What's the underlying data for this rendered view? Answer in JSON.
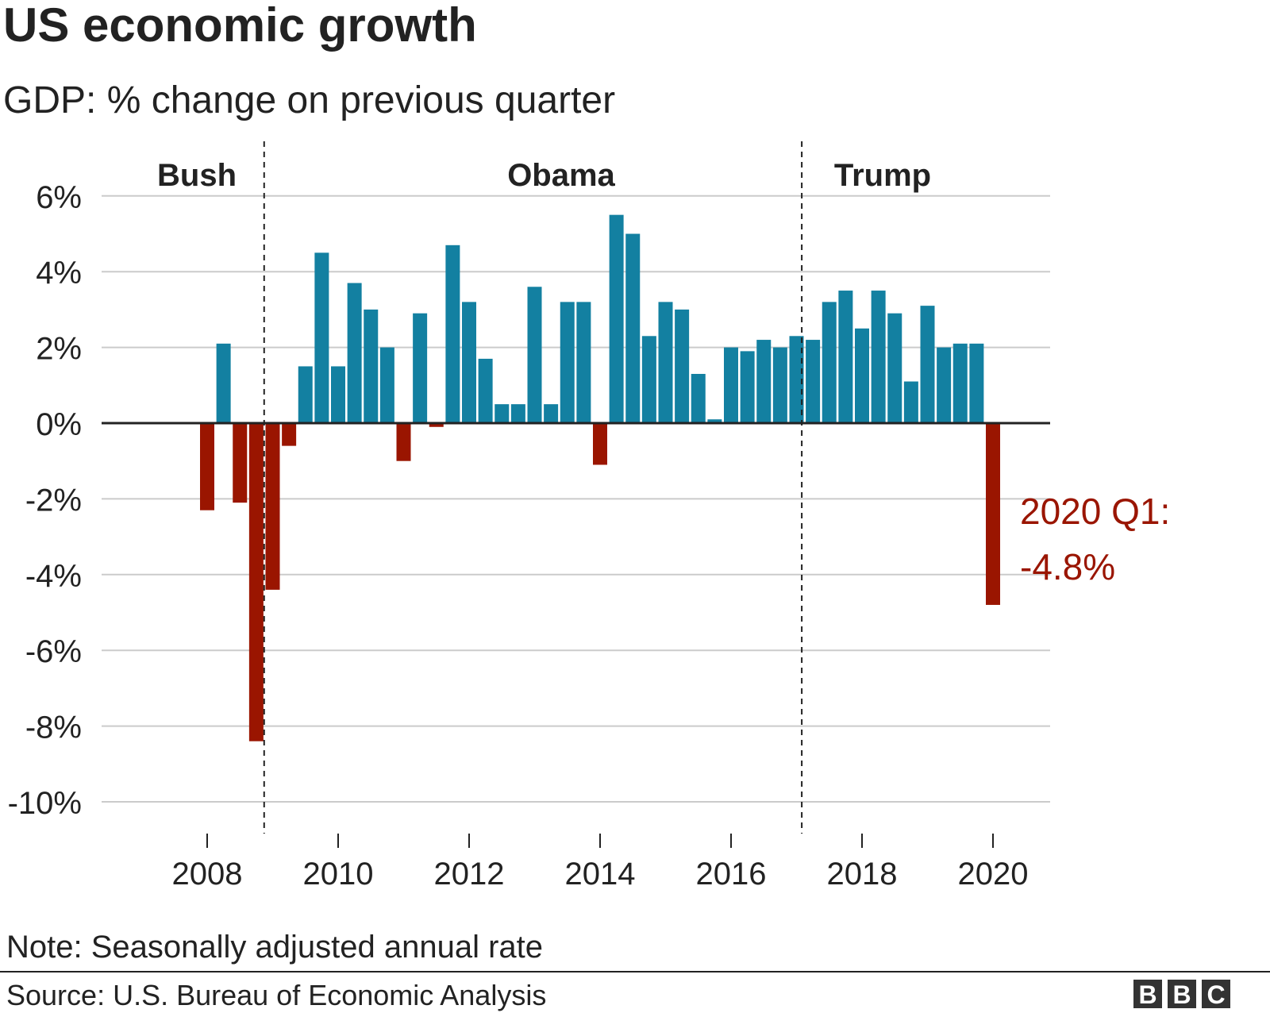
{
  "title": "US economic growth",
  "subtitle": "GDP: % change on previous quarter",
  "note": "Note: Seasonally adjusted annual rate",
  "source": "Source: U.S. Bureau of Economic Analysis",
  "logo": "BBC",
  "colors": {
    "positive": "#1380a1",
    "negative": "#9a1500",
    "annotation": "#9a1500",
    "grid": "#cbcbcb",
    "zero": "#222222"
  },
  "chart_data": {
    "type": "bar",
    "title": "US economic growth",
    "subtitle": "GDP: % change on previous quarter",
    "ylim": [
      -10,
      6
    ],
    "yticks": [
      6,
      4,
      2,
      0,
      -2,
      -4,
      -6,
      -8,
      -10
    ],
    "ytick_labels": [
      "6%",
      "4%",
      "2%",
      "0%",
      "-2%",
      "-4%",
      "-6%",
      "-8%",
      "-10%"
    ],
    "xticks": [
      2008,
      2010,
      2012,
      2014,
      2016,
      2018,
      2020
    ],
    "xtick_labels": [
      "2008",
      "2010",
      "2012",
      "2014",
      "2016",
      "2018",
      "2020"
    ],
    "grid": "horizontal",
    "start_quarter": "2008 Q1",
    "categories": [
      "2008 Q1",
      "2008 Q2",
      "2008 Q3",
      "2008 Q4",
      "2009 Q1",
      "2009 Q2",
      "2009 Q3",
      "2009 Q4",
      "2010 Q1",
      "2010 Q2",
      "2010 Q3",
      "2010 Q4",
      "2011 Q1",
      "2011 Q2",
      "2011 Q3",
      "2011 Q4",
      "2012 Q1",
      "2012 Q2",
      "2012 Q3",
      "2012 Q4",
      "2013 Q1",
      "2013 Q2",
      "2013 Q3",
      "2013 Q4",
      "2014 Q1",
      "2014 Q2",
      "2014 Q3",
      "2014 Q4",
      "2015 Q1",
      "2015 Q2",
      "2015 Q3",
      "2015 Q4",
      "2016 Q1",
      "2016 Q2",
      "2016 Q3",
      "2016 Q4",
      "2017 Q1",
      "2017 Q2",
      "2017 Q3",
      "2017 Q4",
      "2018 Q1",
      "2018 Q2",
      "2018 Q3",
      "2018 Q4",
      "2019 Q1",
      "2019 Q2",
      "2019 Q3",
      "2019 Q4",
      "2020 Q1"
    ],
    "values": [
      -2.3,
      2.1,
      -2.1,
      -8.4,
      -4.4,
      -0.6,
      1.5,
      4.5,
      1.5,
      3.7,
      3.0,
      2.0,
      -1.0,
      2.9,
      -0.1,
      4.7,
      3.2,
      1.7,
      0.5,
      0.5,
      3.6,
      0.5,
      3.2,
      3.2,
      -1.1,
      5.5,
      5.0,
      2.3,
      3.2,
      3.0,
      1.3,
      0.1,
      2.0,
      1.9,
      2.2,
      2.0,
      2.3,
      2.2,
      3.2,
      3.5,
      2.5,
      3.5,
      2.9,
      1.1,
      3.1,
      2.0,
      2.1,
      2.1,
      -4.8
    ],
    "periods": [
      {
        "label": "Bush",
        "end": 2008.87
      },
      {
        "label": "Obama",
        "end": 2017.08
      },
      {
        "label": "Trump"
      }
    ],
    "annotation": {
      "line1": "2020 Q1:",
      "line2": "-4.8%",
      "target": "2020 Q1"
    }
  }
}
